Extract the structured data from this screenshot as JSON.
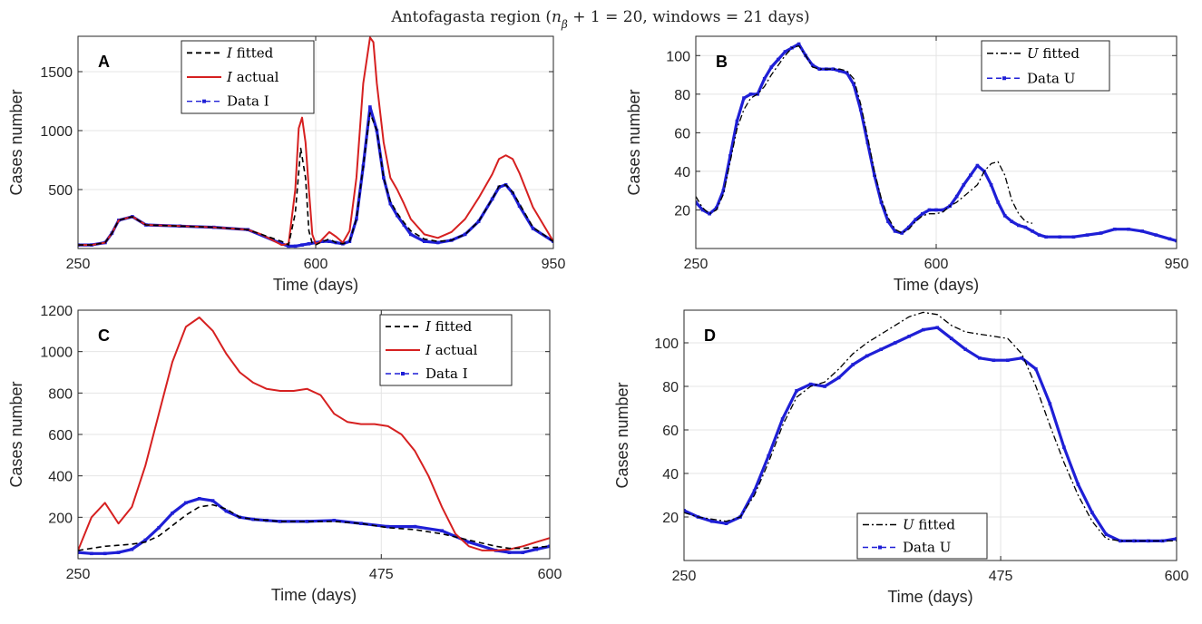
{
  "figure": {
    "title": "Antofagasta region (n_β + 1 = 20, windows = 21 days)"
  },
  "colors": {
    "fitted": "#000000",
    "actual": "#d62020",
    "data": "#1f1fd6",
    "grid": "#e4e4e4",
    "axis": "#262626"
  },
  "chart_data": [
    {
      "panel": "A",
      "type": "line",
      "xlabel": "Time (days)",
      "ylabel": "Cases number",
      "xlim": [
        250,
        950
      ],
      "ylim": [
        0,
        1800
      ],
      "xticks": [
        250,
        600,
        950
      ],
      "yticks": [
        500,
        1000,
        1500
      ],
      "grid": true,
      "legend_position": "top-center",
      "series": [
        {
          "name": "I fitted",
          "label_italic": "I",
          "label_rest": " fitted",
          "style": "dashed",
          "x": [
            250,
            270,
            290,
            300,
            310,
            330,
            350,
            400,
            450,
            500,
            550,
            560,
            570,
            578,
            585,
            590,
            595,
            600,
            610,
            620,
            630,
            640,
            650,
            660,
            670,
            680,
            690,
            700,
            710,
            720,
            730,
            740,
            760,
            780,
            800,
            820,
            840,
            860,
            870,
            880,
            890,
            900,
            920,
            950
          ],
          "y": [
            30,
            30,
            50,
            130,
            240,
            270,
            200,
            190,
            180,
            160,
            60,
            30,
            300,
            850,
            600,
            150,
            40,
            30,
            60,
            80,
            50,
            40,
            60,
            250,
            700,
            1150,
            1000,
            600,
            400,
            300,
            220,
            150,
            80,
            60,
            70,
            120,
            230,
            420,
            530,
            540,
            480,
            380,
            180,
            60
          ]
        },
        {
          "name": "I actual",
          "label_italic": "I",
          "label_rest": " actual",
          "style": "solid",
          "x": [
            250,
            270,
            290,
            300,
            310,
            330,
            350,
            400,
            450,
            500,
            520,
            540,
            550,
            560,
            570,
            575,
            580,
            585,
            590,
            595,
            600,
            605,
            610,
            620,
            630,
            640,
            650,
            660,
            670,
            680,
            685,
            690,
            700,
            710,
            720,
            730,
            740,
            760,
            780,
            800,
            820,
            840,
            860,
            870,
            880,
            890,
            900,
            920,
            950
          ],
          "y": [
            30,
            30,
            50,
            130,
            240,
            270,
            200,
            190,
            180,
            160,
            120,
            60,
            30,
            40,
            500,
            1020,
            1110,
            900,
            500,
            120,
            40,
            50,
            80,
            140,
            100,
            50,
            150,
            600,
            1400,
            1790,
            1750,
            1400,
            900,
            600,
            500,
            380,
            250,
            120,
            90,
            140,
            250,
            430,
            630,
            760,
            790,
            760,
            640,
            350,
            60
          ]
        },
        {
          "name": "Data I",
          "label_italic": "",
          "label_rest": "Data I",
          "style": "dashed-marker",
          "x": [
            250,
            270,
            290,
            300,
            310,
            330,
            350,
            400,
            450,
            500,
            550,
            560,
            570,
            580,
            590,
            600,
            610,
            620,
            630,
            640,
            650,
            660,
            670,
            680,
            690,
            700,
            710,
            720,
            730,
            740,
            760,
            780,
            800,
            820,
            840,
            860,
            870,
            880,
            890,
            900,
            920,
            950
          ],
          "y": [
            30,
            30,
            50,
            130,
            240,
            270,
            200,
            190,
            180,
            160,
            40,
            20,
            20,
            30,
            40,
            50,
            60,
            60,
            50,
            40,
            60,
            250,
            700,
            1200,
            1000,
            600,
            380,
            280,
            200,
            120,
            60,
            50,
            70,
            120,
            230,
            420,
            520,
            540,
            470,
            360,
            170,
            60
          ]
        }
      ]
    },
    {
      "panel": "B",
      "type": "line",
      "xlabel": "Time (days)",
      "ylabel": "Cases number",
      "xlim": [
        250,
        950
      ],
      "ylim": [
        0,
        110
      ],
      "xticks": [
        250,
        600,
        950
      ],
      "yticks": [
        20,
        40,
        60,
        80,
        100
      ],
      "grid": true,
      "legend_position": "top-right",
      "series": [
        {
          "name": "U fitted",
          "label_italic": "U",
          "label_rest": " fitted",
          "style": "dashdot",
          "x": [
            250,
            260,
            270,
            280,
            290,
            300,
            310,
            320,
            330,
            340,
            350,
            360,
            370,
            380,
            390,
            400,
            410,
            420,
            430,
            440,
            450,
            460,
            470,
            480,
            490,
            500,
            510,
            520,
            530,
            540,
            550,
            560,
            570,
            580,
            590,
            600,
            610,
            620,
            630,
            640,
            650,
            660,
            670,
            680,
            690,
            700,
            710,
            720,
            730,
            740
          ],
          "y": [
            27,
            21,
            18,
            20,
            28,
            45,
            62,
            72,
            78,
            80,
            84,
            90,
            95,
            100,
            104,
            105,
            100,
            94,
            93,
            93,
            93,
            93,
            92,
            88,
            75,
            58,
            40,
            26,
            16,
            10,
            8,
            10,
            14,
            17,
            18,
            18,
            19,
            22,
            24,
            27,
            30,
            33,
            40,
            44,
            45,
            38,
            25,
            18,
            14,
            13
          ],
          "x_offset_note": "x values shifted: starts at 250"
        },
        {
          "name": "Data U",
          "label_italic": "",
          "label_rest": "Data U",
          "style": "dashed-marker",
          "x": [
            250,
            260,
            270,
            280,
            290,
            300,
            310,
            320,
            330,
            340,
            350,
            360,
            370,
            380,
            390,
            400,
            410,
            420,
            430,
            440,
            450,
            460,
            470,
            480,
            490,
            500,
            510,
            520,
            530,
            540,
            550,
            560,
            570,
            580,
            590,
            600,
            610,
            620,
            630,
            640,
            650,
            660,
            670,
            680,
            690,
            700,
            710,
            720,
            730,
            740,
            750,
            760,
            780,
            800,
            820,
            840,
            860,
            880,
            900,
            920,
            940,
            950
          ],
          "y": [
            24,
            20,
            18,
            21,
            30,
            48,
            66,
            78,
            80,
            80,
            88,
            94,
            98,
            102,
            104,
            106,
            100,
            95,
            93,
            93,
            93,
            92,
            91,
            85,
            72,
            55,
            38,
            24,
            14,
            9,
            8,
            11,
            15,
            18,
            20,
            20,
            20,
            22,
            27,
            33,
            38,
            43,
            40,
            33,
            24,
            17,
            14,
            12,
            11,
            9,
            7,
            6,
            6,
            6,
            7,
            8,
            10,
            10,
            9,
            7,
            5,
            4
          ]
        }
      ]
    },
    {
      "panel": "C",
      "type": "line",
      "xlabel": "Time (days)",
      "ylabel": "Cases number",
      "xlim": [
        250,
        600
      ],
      "ylim": [
        0,
        1200
      ],
      "xticks": [
        250,
        475,
        600
      ],
      "yticks": [
        200,
        400,
        600,
        800,
        1000,
        1200
      ],
      "grid": true,
      "legend_position": "top-right",
      "series": [
        {
          "name": "I fitted",
          "label_italic": "I",
          "label_rest": " fitted",
          "style": "dashed",
          "x": [
            250,
            260,
            270,
            280,
            290,
            300,
            310,
            320,
            330,
            340,
            350,
            360,
            370,
            380,
            390,
            400,
            420,
            440,
            460,
            480,
            500,
            520,
            540,
            560,
            570,
            580,
            590,
            600
          ],
          "y": [
            40,
            50,
            60,
            65,
            70,
            80,
            110,
            160,
            210,
            250,
            260,
            240,
            200,
            190,
            185,
            180,
            180,
            180,
            170,
            150,
            140,
            120,
            90,
            60,
            50,
            50,
            55,
            60
          ]
        },
        {
          "name": "I actual",
          "label_italic": "I",
          "label_rest": " actual",
          "style": "solid",
          "x": [
            250,
            260,
            270,
            280,
            290,
            300,
            310,
            320,
            330,
            340,
            350,
            360,
            370,
            380,
            390,
            400,
            410,
            420,
            430,
            440,
            450,
            460,
            470,
            480,
            490,
            500,
            510,
            520,
            530,
            540,
            550,
            560,
            570,
            580,
            590,
            600
          ],
          "y": [
            40,
            200,
            270,
            170,
            250,
            450,
            700,
            950,
            1120,
            1165,
            1100,
            990,
            900,
            850,
            820,
            810,
            810,
            820,
            790,
            700,
            660,
            650,
            650,
            640,
            600,
            520,
            400,
            250,
            120,
            60,
            40,
            40,
            45,
            60,
            80,
            100
          ]
        },
        {
          "name": "Data I",
          "label_italic": "",
          "label_rest": "Data I",
          "style": "dashed-marker",
          "x": [
            250,
            260,
            270,
            280,
            290,
            300,
            310,
            320,
            330,
            340,
            350,
            360,
            370,
            380,
            390,
            400,
            420,
            440,
            460,
            480,
            500,
            520,
            540,
            560,
            570,
            580,
            590,
            600
          ],
          "y": [
            30,
            25,
            25,
            30,
            45,
            90,
            150,
            220,
            270,
            290,
            280,
            230,
            200,
            190,
            185,
            180,
            180,
            185,
            170,
            155,
            155,
            135,
            80,
            40,
            30,
            30,
            45,
            60
          ]
        }
      ]
    },
    {
      "panel": "D",
      "type": "line",
      "xlabel": "Time (days)",
      "ylabel": "Cases number",
      "xlim": [
        250,
        600
      ],
      "ylim": [
        0,
        115
      ],
      "xticks": [
        250,
        475,
        600
      ],
      "yticks": [
        20,
        40,
        60,
        80,
        100
      ],
      "grid": true,
      "legend_position": "bottom-center",
      "series": [
        {
          "name": "U fitted",
          "label_italic": "U",
          "label_rest": " fitted",
          "style": "dashdot",
          "x": [
            250,
            260,
            270,
            280,
            290,
            300,
            310,
            320,
            330,
            340,
            350,
            360,
            370,
            380,
            390,
            400,
            410,
            420,
            430,
            440,
            450,
            460,
            470,
            480,
            490,
            500,
            510,
            520,
            530,
            540,
            550,
            560,
            570,
            580,
            590,
            600
          ],
          "y": [
            22,
            20,
            19,
            18,
            20,
            30,
            45,
            62,
            75,
            80,
            82,
            88,
            95,
            100,
            104,
            108,
            112,
            114,
            113,
            108,
            105,
            104,
            103,
            102,
            95,
            80,
            62,
            45,
            30,
            18,
            10,
            9,
            9,
            9,
            9,
            9
          ]
        },
        {
          "name": "Data U",
          "label_italic": "",
          "label_rest": "Data U",
          "style": "dashed-marker",
          "x": [
            250,
            260,
            270,
            280,
            290,
            300,
            310,
            320,
            330,
            340,
            350,
            360,
            370,
            380,
            390,
            400,
            410,
            420,
            430,
            440,
            450,
            460,
            470,
            480,
            490,
            500,
            510,
            520,
            530,
            540,
            550,
            560,
            570,
            580,
            590,
            600
          ],
          "y": [
            23,
            20,
            18,
            17,
            20,
            32,
            48,
            65,
            78,
            81,
            80,
            84,
            90,
            94,
            97,
            100,
            103,
            106,
            107,
            102,
            97,
            93,
            92,
            92,
            93,
            88,
            72,
            52,
            35,
            22,
            12,
            9,
            9,
            9,
            9,
            10
          ]
        }
      ]
    }
  ]
}
